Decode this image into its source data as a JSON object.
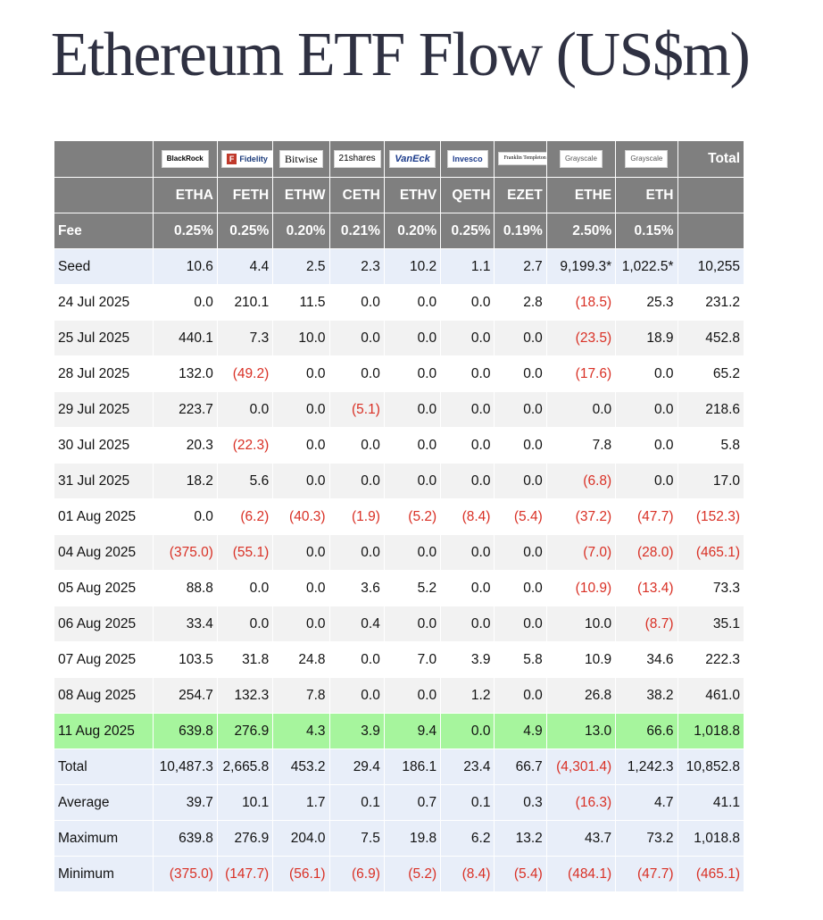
{
  "title": "Ethereum ETF Flow (US$m)",
  "chart_data": {
    "type": "table",
    "issuers": [
      "BlackRock",
      "Fidelity",
      "Bitwise",
      "21shares",
      "VanEck",
      "Invesco",
      "Franklin Templeton",
      "Grayscale",
      "Grayscale"
    ],
    "total_header": "Total",
    "tickers": [
      "ETHA",
      "FETH",
      "ETHW",
      "CETH",
      "ETHV",
      "QETH",
      "EZET",
      "ETHE",
      "ETH"
    ],
    "fee_label": "Fee",
    "fees": [
      "0.25%",
      "0.25%",
      "0.20%",
      "0.21%",
      "0.20%",
      "0.25%",
      "0.19%",
      "2.50%",
      "0.15%"
    ],
    "rows": [
      {
        "label": "Seed",
        "kind": "seed",
        "values": [
          "10.6",
          "4.4",
          "2.5",
          "2.3",
          "10.2",
          "1.1",
          "2.7",
          "9,199.3*",
          "1,022.5*",
          "10,255"
        ]
      },
      {
        "label": "24 Jul 2025",
        "kind": "even",
        "values": [
          "0.0",
          "210.1",
          "11.5",
          "0.0",
          "0.0",
          "0.0",
          "2.8",
          "(18.5)",
          "25.3",
          "231.2"
        ]
      },
      {
        "label": "25 Jul 2025",
        "kind": "odd",
        "values": [
          "440.1",
          "7.3",
          "10.0",
          "0.0",
          "0.0",
          "0.0",
          "0.0",
          "(23.5)",
          "18.9",
          "452.8"
        ]
      },
      {
        "label": "28 Jul 2025",
        "kind": "even",
        "values": [
          "132.0",
          "(49.2)",
          "0.0",
          "0.0",
          "0.0",
          "0.0",
          "0.0",
          "(17.6)",
          "0.0",
          "65.2"
        ]
      },
      {
        "label": "29 Jul 2025",
        "kind": "odd",
        "values": [
          "223.7",
          "0.0",
          "0.0",
          "(5.1)",
          "0.0",
          "0.0",
          "0.0",
          "0.0",
          "0.0",
          "218.6"
        ]
      },
      {
        "label": "30 Jul 2025",
        "kind": "even",
        "values": [
          "20.3",
          "(22.3)",
          "0.0",
          "0.0",
          "0.0",
          "0.0",
          "0.0",
          "7.8",
          "0.0",
          "5.8"
        ]
      },
      {
        "label": "31 Jul 2025",
        "kind": "odd",
        "values": [
          "18.2",
          "5.6",
          "0.0",
          "0.0",
          "0.0",
          "0.0",
          "0.0",
          "(6.8)",
          "0.0",
          "17.0"
        ]
      },
      {
        "label": "01 Aug 2025",
        "kind": "even",
        "values": [
          "0.0",
          "(6.2)",
          "(40.3)",
          "(1.9)",
          "(5.2)",
          "(8.4)",
          "(5.4)",
          "(37.2)",
          "(47.7)",
          "(152.3)"
        ]
      },
      {
        "label": "04 Aug 2025",
        "kind": "odd",
        "values": [
          "(375.0)",
          "(55.1)",
          "0.0",
          "0.0",
          "0.0",
          "0.0",
          "0.0",
          "(7.0)",
          "(28.0)",
          "(465.1)"
        ]
      },
      {
        "label": "05 Aug 2025",
        "kind": "even",
        "values": [
          "88.8",
          "0.0",
          "0.0",
          "3.6",
          "5.2",
          "0.0",
          "0.0",
          "(10.9)",
          "(13.4)",
          "73.3"
        ]
      },
      {
        "label": "06 Aug 2025",
        "kind": "odd",
        "values": [
          "33.4",
          "0.0",
          "0.0",
          "0.4",
          "0.0",
          "0.0",
          "0.0",
          "10.0",
          "(8.7)",
          "35.1"
        ]
      },
      {
        "label": "07 Aug 2025",
        "kind": "even",
        "values": [
          "103.5",
          "31.8",
          "24.8",
          "0.0",
          "7.0",
          "3.9",
          "5.8",
          "10.9",
          "34.6",
          "222.3"
        ]
      },
      {
        "label": "08 Aug 2025",
        "kind": "odd",
        "values": [
          "254.7",
          "132.3",
          "7.8",
          "0.0",
          "0.0",
          "1.2",
          "0.0",
          "26.8",
          "38.2",
          "461.0"
        ]
      },
      {
        "label": "11 Aug 2025",
        "kind": "latest",
        "values": [
          "639.8",
          "276.9",
          "4.3",
          "3.9",
          "9.4",
          "0.0",
          "4.9",
          "13.0",
          "66.6",
          "1,018.8"
        ]
      },
      {
        "label": "Total",
        "kind": "stat",
        "values": [
          "10,487.3",
          "2,665.8",
          "453.2",
          "29.4",
          "186.1",
          "23.4",
          "66.7",
          "(4,301.4)",
          "1,242.3",
          "10,852.8"
        ]
      },
      {
        "label": "Average",
        "kind": "stat",
        "values": [
          "39.7",
          "10.1",
          "1.7",
          "0.1",
          "0.7",
          "0.1",
          "0.3",
          "(16.3)",
          "4.7",
          "41.1"
        ]
      },
      {
        "label": "Maximum",
        "kind": "stat",
        "values": [
          "639.8",
          "276.9",
          "204.0",
          "7.5",
          "19.8",
          "6.2",
          "13.2",
          "43.7",
          "73.2",
          "1,018.8"
        ]
      },
      {
        "label": "Minimum",
        "kind": "stat",
        "values": [
          "(375.0)",
          "(147.7)",
          "(56.1)",
          "(6.9)",
          "(5.2)",
          "(8.4)",
          "(5.4)",
          "(484.1)",
          "(47.7)",
          "(465.1)"
        ]
      }
    ],
    "colors": {
      "header_bg": "#7f7f7f",
      "negative": "#d93025",
      "latest_row": "#a6f59d",
      "stat_row": "#e8eef9",
      "stripe": "#f2f2f2"
    }
  }
}
